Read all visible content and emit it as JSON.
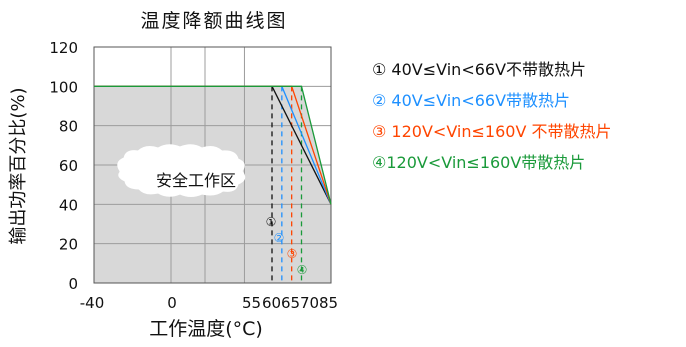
{
  "chart_data": {
    "type": "line",
    "title": "温度降额曲线图",
    "xlabel": "工作温度(°C)",
    "ylabel": "输出功率百分比(%)",
    "xlim": [
      -40,
      85
    ],
    "ylim": [
      0,
      120
    ],
    "x_ticks": [
      -40,
      0,
      55,
      60,
      65,
      70,
      85
    ],
    "x_tick_labels": [
      "-40",
      "0",
      "55",
      "60",
      "65",
      "70",
      "85"
    ],
    "y_ticks": [
      0,
      20,
      40,
      60,
      80,
      100,
      120
    ],
    "y_tick_labels": [
      "0",
      "20",
      "40",
      "60",
      "80",
      "100",
      "120"
    ],
    "grid": true,
    "region_label": "安全工作区",
    "series": [
      {
        "name": "① 40V≤Vin<66V不带散热片",
        "marker": "①",
        "color": "#111111",
        "x": [
          -40,
          55,
          85
        ],
        "y": [
          100,
          100,
          40
        ]
      },
      {
        "name": "② 40V≤Vin<66V带散热片",
        "marker": "②",
        "color": "#1e90ff",
        "x": [
          -40,
          60,
          85
        ],
        "y": [
          100,
          100,
          40
        ]
      },
      {
        "name": "③ 120V<Vin≤160V 不带散热片",
        "marker": "③",
        "color": "#ff4500",
        "x": [
          -40,
          65,
          85
        ],
        "y": [
          100,
          100,
          40
        ]
      },
      {
        "name": "④120V<Vin≤160V带散热片",
        "marker": "④",
        "color": "#1a9a3a",
        "x": [
          -40,
          70,
          85
        ],
        "y": [
          100,
          100,
          40
        ]
      }
    ]
  }
}
